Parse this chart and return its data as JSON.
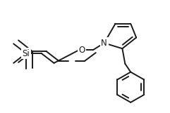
{
  "bg_color": "#ffffff",
  "line_color": "#1a1a1a",
  "line_width": 1.4,
  "font_size": 8.5,
  "figsize": [
    2.41,
    1.61
  ],
  "dpi": 100,
  "xlim": [
    0,
    241
  ],
  "ylim": [
    0,
    161
  ]
}
